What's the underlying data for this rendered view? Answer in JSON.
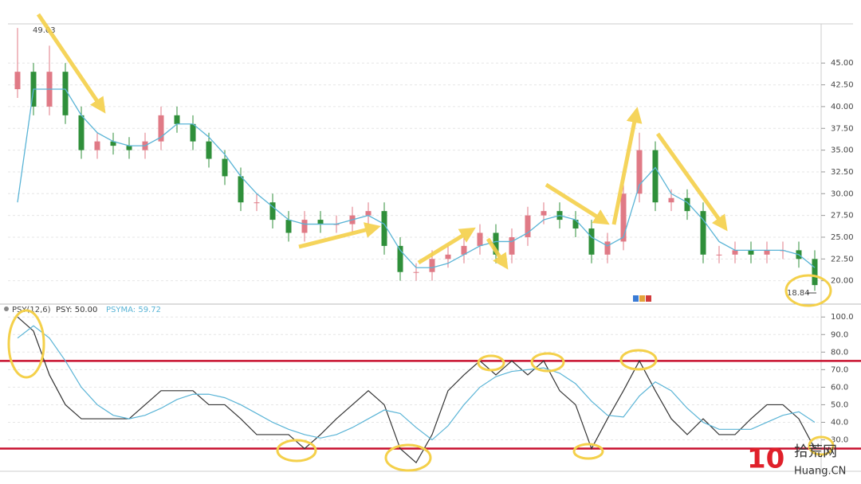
{
  "chart_data": [
    {
      "type": "candlestick",
      "up_color": "#e07a86",
      "down_color": "#2f8f3a",
      "open": [
        42,
        44,
        40,
        44,
        39,
        35,
        36,
        35.5,
        35,
        36,
        39,
        38,
        36,
        34,
        32,
        29,
        29,
        27,
        25.5,
        27,
        26.5,
        26.5,
        27.5,
        28,
        24,
        21,
        21,
        22.5,
        23,
        24,
        25.5,
        23,
        25,
        27.5,
        28,
        27,
        26,
        23,
        24.5,
        30,
        35,
        29,
        29.5,
        28,
        23,
        23,
        23.5,
        23,
        23.5,
        23.5,
        22.5
      ],
      "high": [
        49.03,
        45,
        47,
        45,
        40,
        37,
        37,
        36.5,
        37,
        40,
        40,
        39,
        37,
        35,
        33,
        30,
        30,
        28,
        28,
        28,
        27.5,
        28.5,
        29,
        29,
        25,
        22,
        23.5,
        24,
        25,
        26.5,
        26.5,
        26,
        28.5,
        29,
        29,
        28,
        27,
        25.5,
        31,
        37,
        36,
        30.5,
        30.5,
        29,
        24,
        24.5,
        24.5,
        24.5,
        24.5,
        24.5,
        23.5
      ],
      "low": [
        41,
        39,
        39,
        38,
        34,
        34,
        34.5,
        34,
        34,
        35,
        37,
        35,
        33,
        31,
        28,
        28,
        26,
        24.5,
        24.5,
        25.5,
        25.5,
        25.5,
        26.5,
        23,
        20,
        20,
        20,
        21.5,
        22,
        23,
        22,
        22,
        24,
        26.5,
        26,
        25,
        22,
        22,
        23.5,
        29,
        28,
        28,
        27,
        22,
        22,
        22,
        22,
        22,
        22.5,
        21.5,
        18.84
      ],
      "close": [
        44,
        40,
        44,
        39,
        35,
        36,
        35.5,
        35,
        36,
        39,
        38,
        36,
        34,
        32,
        29,
        29,
        27,
        25.5,
        27,
        26.5,
        26.5,
        27.5,
        28,
        24,
        21,
        21,
        22.5,
        23,
        24,
        25.5,
        23,
        25,
        27.5,
        28,
        27,
        26,
        23,
        24.5,
        30,
        35,
        29,
        29.5,
        28,
        23,
        23,
        23.5,
        23,
        23.5,
        23.5,
        22.5,
        19.5
      ],
      "ma": {
        "color": "#5ab4d6",
        "values": [
          29,
          42,
          42,
          42,
          39,
          37,
          36,
          35.5,
          35.5,
          36.5,
          38,
          38,
          36.5,
          34.5,
          32,
          30,
          28.5,
          27,
          26.5,
          26.5,
          26.5,
          27,
          27.5,
          26.5,
          23.5,
          21.5,
          21.5,
          22,
          23,
          24,
          24.5,
          24.5,
          25.5,
          27,
          27.5,
          27,
          25,
          24,
          25,
          31,
          33,
          30,
          29,
          27,
          24.5,
          23.5,
          23.5,
          23.5,
          23.5,
          23,
          21.5
        ]
      },
      "annotations": [
        {
          "text": "49.03"
        },
        {
          "text": "18.84"
        }
      ],
      "ylim": [
        17.5,
        49.5
      ],
      "yticks": [
        {
          "value": 20,
          "label": "20.00"
        },
        {
          "value": 22.5,
          "label": "22.50"
        },
        {
          "value": 25,
          "label": "25.00"
        },
        {
          "value": 27.5,
          "label": "27.50"
        },
        {
          "value": 30,
          "label": "30.00"
        },
        {
          "value": 32.5,
          "label": "32.50"
        },
        {
          "value": 35,
          "label": "35.00"
        },
        {
          "value": 37.5,
          "label": "37.50"
        },
        {
          "value": 40,
          "label": "40.00"
        },
        {
          "value": 42.5,
          "label": "42.50"
        },
        {
          "value": 45,
          "label": "45.00"
        }
      ],
      "grid": true
    },
    {
      "type": "line",
      "title": "PSY(12,6)",
      "series": [
        {
          "name": "PSY: 50.00",
          "color": "#333333",
          "values": [
            100,
            92,
            67,
            50,
            42,
            42,
            42,
            42,
            50,
            58,
            58,
            58,
            50,
            50,
            42,
            33,
            33,
            33,
            25,
            33,
            42,
            50,
            58,
            50,
            25,
            17,
            33,
            58,
            67,
            75,
            67,
            75,
            67,
            75,
            58,
            50,
            25,
            42,
            58,
            75,
            58,
            42,
            33,
            42,
            33,
            33,
            42,
            50,
            50,
            42,
            25
          ]
        },
        {
          "name": "PSYMA: 59.72",
          "color": "#5ab4d6",
          "values": [
            88,
            95,
            88,
            75,
            60,
            50,
            44,
            42,
            44,
            48,
            53,
            56,
            56,
            54,
            50,
            45,
            40,
            36,
            33,
            31,
            33,
            37,
            42,
            47,
            45,
            37,
            30,
            38,
            50,
            60,
            66,
            69,
            70,
            71,
            68,
            62,
            52,
            44,
            43,
            55,
            63,
            58,
            48,
            40,
            36,
            36,
            36,
            40,
            44,
            46,
            40
          ]
        }
      ],
      "ref_lines": [
        75,
        25
      ],
      "ref_color": "#c8102e",
      "ylim": [
        13,
        106
      ],
      "yticks": [
        {
          "value": 30,
          "label": "30.0"
        },
        {
          "value": 40,
          "label": "40.0"
        },
        {
          "value": 50,
          "label": "50.0"
        },
        {
          "value": 60,
          "label": "60.0"
        },
        {
          "value": 70,
          "label": "70.0"
        },
        {
          "value": 80,
          "label": "80.0"
        },
        {
          "value": 90,
          "label": "90.0"
        },
        {
          "value": 100,
          "label": "100.0"
        }
      ],
      "grid": true
    }
  ],
  "watermark": {
    "number": "10",
    "name": "拾荒网",
    "site": "Huang.CN"
  }
}
